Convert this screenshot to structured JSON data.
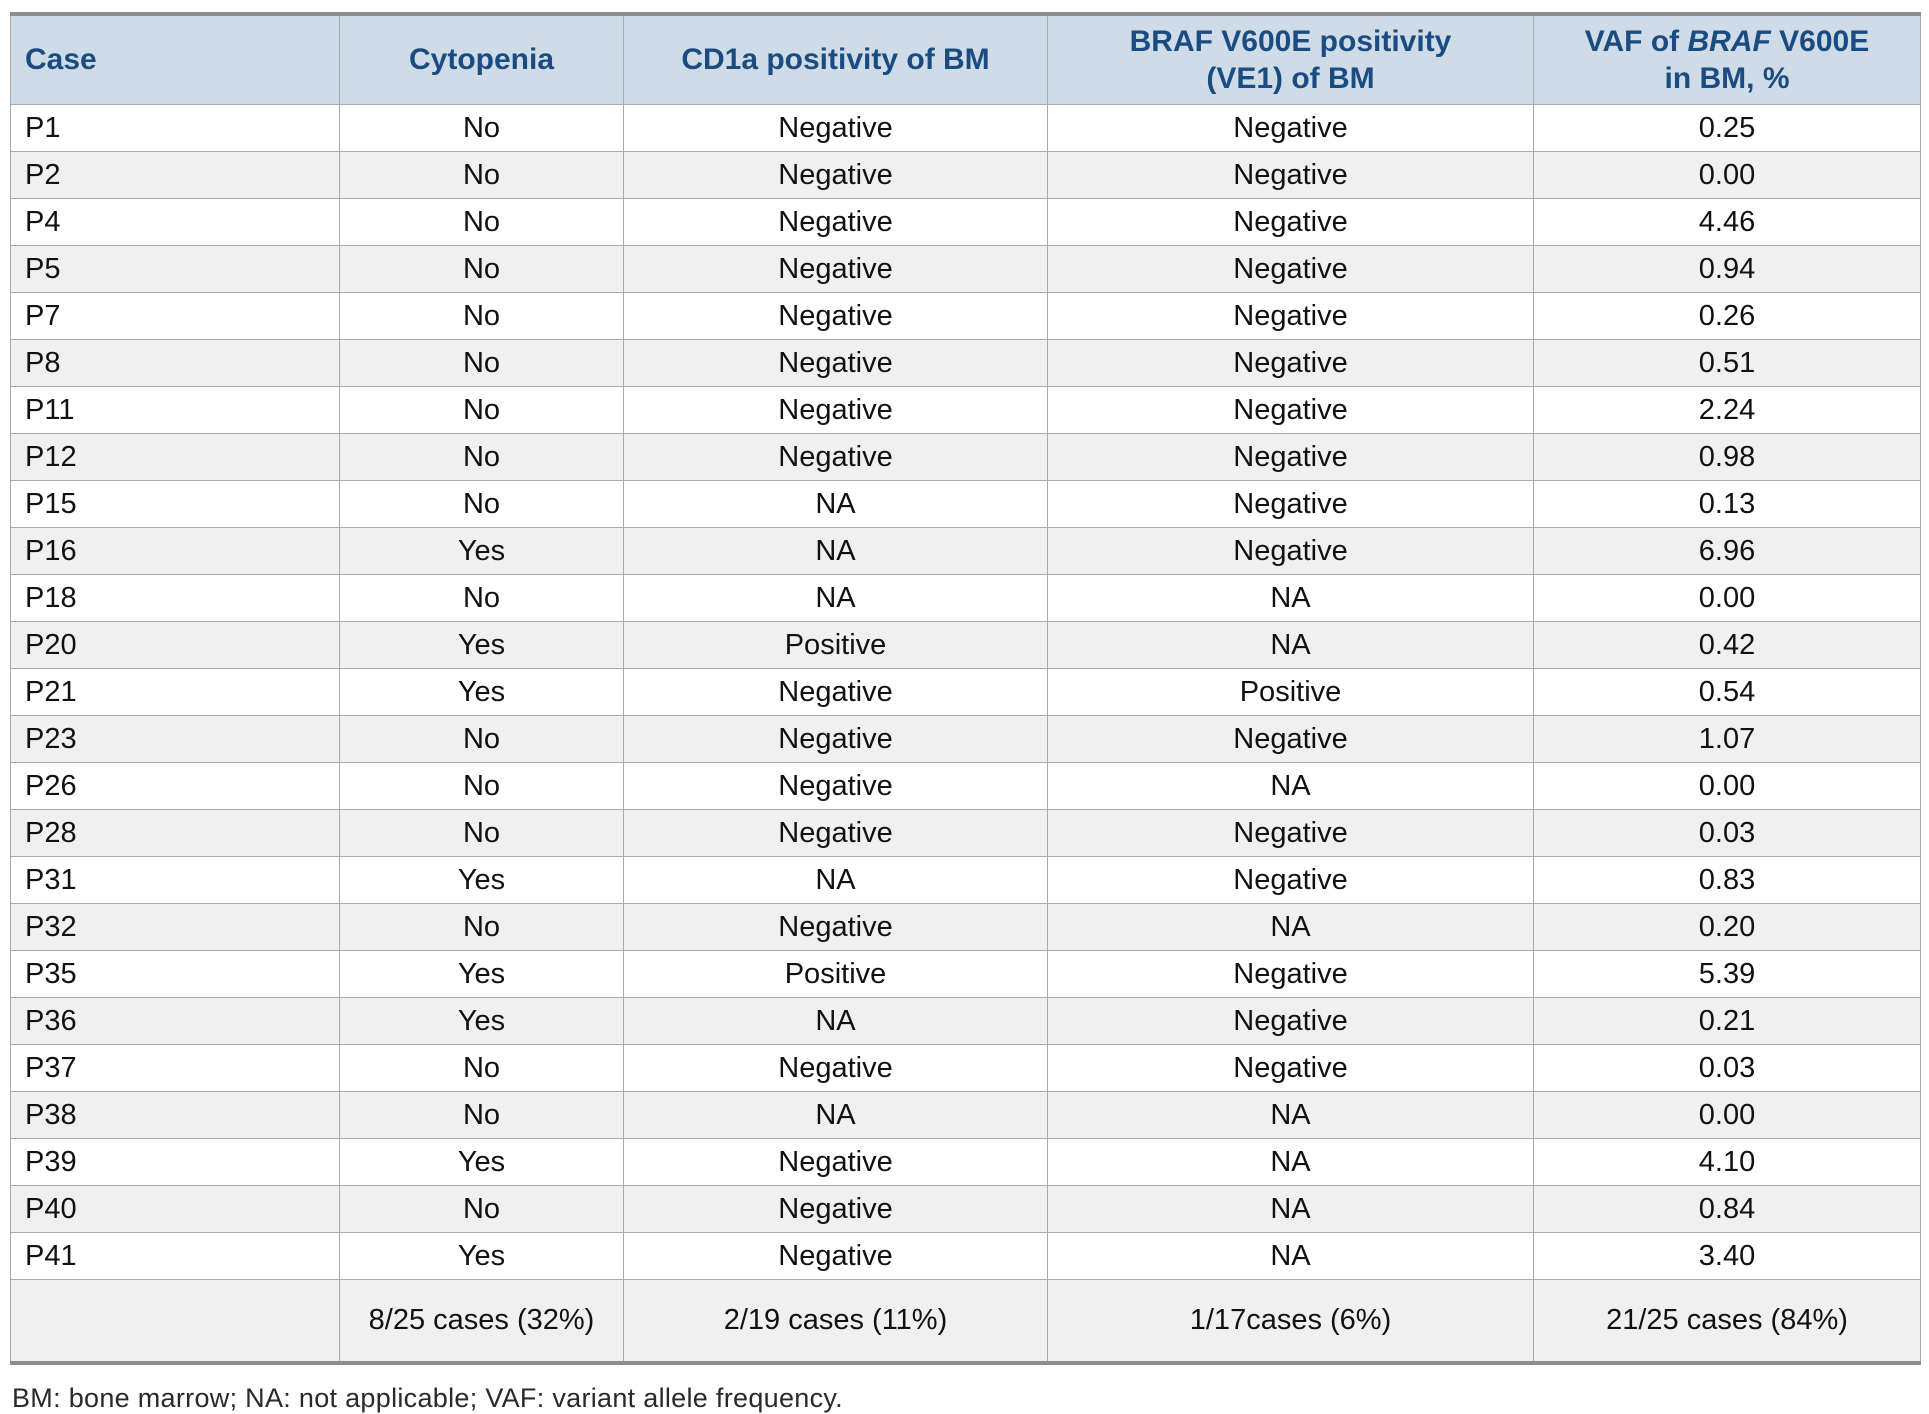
{
  "table": {
    "columns": [
      {
        "key": "case",
        "label": "Case"
      },
      {
        "key": "cytopenia",
        "label": "Cytopenia"
      },
      {
        "key": "cd1a",
        "label": "CD1a positivity of BM"
      },
      {
        "key": "braf",
        "label_line1": "BRAF V600E positivity",
        "label_line2": "(VE1) of BM"
      },
      {
        "key": "vaf",
        "label_prefix": "VAF of ",
        "label_italic": "BRAF",
        "label_suffix": " V600E",
        "label_line2": "in BM, %"
      }
    ],
    "rows": [
      {
        "case": "P1",
        "cytopenia": "No",
        "cd1a": "Negative",
        "braf": "Negative",
        "vaf": "0.25"
      },
      {
        "case": "P2",
        "cytopenia": "No",
        "cd1a": "Negative",
        "braf": "Negative",
        "vaf": "0.00"
      },
      {
        "case": "P4",
        "cytopenia": "No",
        "cd1a": "Negative",
        "braf": "Negative",
        "vaf": "4.46"
      },
      {
        "case": "P5",
        "cytopenia": "No",
        "cd1a": "Negative",
        "braf": "Negative",
        "vaf": "0.94"
      },
      {
        "case": "P7",
        "cytopenia": "No",
        "cd1a": "Negative",
        "braf": "Negative",
        "vaf": "0.26"
      },
      {
        "case": "P8",
        "cytopenia": "No",
        "cd1a": "Negative",
        "braf": "Negative",
        "vaf": "0.51"
      },
      {
        "case": "P11",
        "cytopenia": "No",
        "cd1a": "Negative",
        "braf": "Negative",
        "vaf": "2.24"
      },
      {
        "case": "P12",
        "cytopenia": "No",
        "cd1a": "Negative",
        "braf": "Negative",
        "vaf": "0.98"
      },
      {
        "case": "P15",
        "cytopenia": "No",
        "cd1a": "NA",
        "braf": "Negative",
        "vaf": "0.13"
      },
      {
        "case": "P16",
        "cytopenia": "Yes",
        "cd1a": "NA",
        "braf": "Negative",
        "vaf": "6.96"
      },
      {
        "case": "P18",
        "cytopenia": "No",
        "cd1a": "NA",
        "braf": "NA",
        "vaf": "0.00"
      },
      {
        "case": "P20",
        "cytopenia": "Yes",
        "cd1a": "Positive",
        "braf": "NA",
        "vaf": "0.42"
      },
      {
        "case": "P21",
        "cytopenia": "Yes",
        "cd1a": "Negative",
        "braf": "Positive",
        "vaf": "0.54"
      },
      {
        "case": "P23",
        "cytopenia": "No",
        "cd1a": "Negative",
        "braf": "Negative",
        "vaf": "1.07"
      },
      {
        "case": "P26",
        "cytopenia": "No",
        "cd1a": "Negative",
        "braf": "NA",
        "vaf": "0.00"
      },
      {
        "case": "P28",
        "cytopenia": "No",
        "cd1a": "Negative",
        "braf": "Negative",
        "vaf": "0.03"
      },
      {
        "case": "P31",
        "cytopenia": "Yes",
        "cd1a": "NA",
        "braf": "Negative",
        "vaf": "0.83"
      },
      {
        "case": "P32",
        "cytopenia": "No",
        "cd1a": "Negative",
        "braf": "NA",
        "vaf": "0.20"
      },
      {
        "case": "P35",
        "cytopenia": "Yes",
        "cd1a": "Positive",
        "braf": "Negative",
        "vaf": "5.39"
      },
      {
        "case": "P36",
        "cytopenia": "Yes",
        "cd1a": "NA",
        "braf": "Negative",
        "vaf": "0.21"
      },
      {
        "case": "P37",
        "cytopenia": "No",
        "cd1a": "Negative",
        "braf": "Negative",
        "vaf": "0.03"
      },
      {
        "case": "P38",
        "cytopenia": "No",
        "cd1a": "NA",
        "braf": "NA",
        "vaf": "0.00"
      },
      {
        "case": "P39",
        "cytopenia": "Yes",
        "cd1a": "Negative",
        "braf": "NA",
        "vaf": "4.10"
      },
      {
        "case": "P40",
        "cytopenia": "No",
        "cd1a": "Negative",
        "braf": "NA",
        "vaf": "0.84"
      },
      {
        "case": "P41",
        "cytopenia": "Yes",
        "cd1a": "Negative",
        "braf": "NA",
        "vaf": "3.40"
      }
    ],
    "summary": {
      "case": "",
      "cytopenia": "8/25 cases (32%)",
      "cd1a": "2/19 cases (11%)",
      "braf": "1/17cases (6%)",
      "vaf": "21/25 cases (84%)"
    }
  },
  "footnote": "BM: bone marrow; NA: not applicable; VAF: variant allele frequency.",
  "colors": {
    "header_bg": "#cfdce7",
    "header_text": "#1a4c82",
    "row_stripe": "#f0f0f0",
    "grid_line": "#a9a9a9",
    "outer_border": "#8d8d8d"
  }
}
